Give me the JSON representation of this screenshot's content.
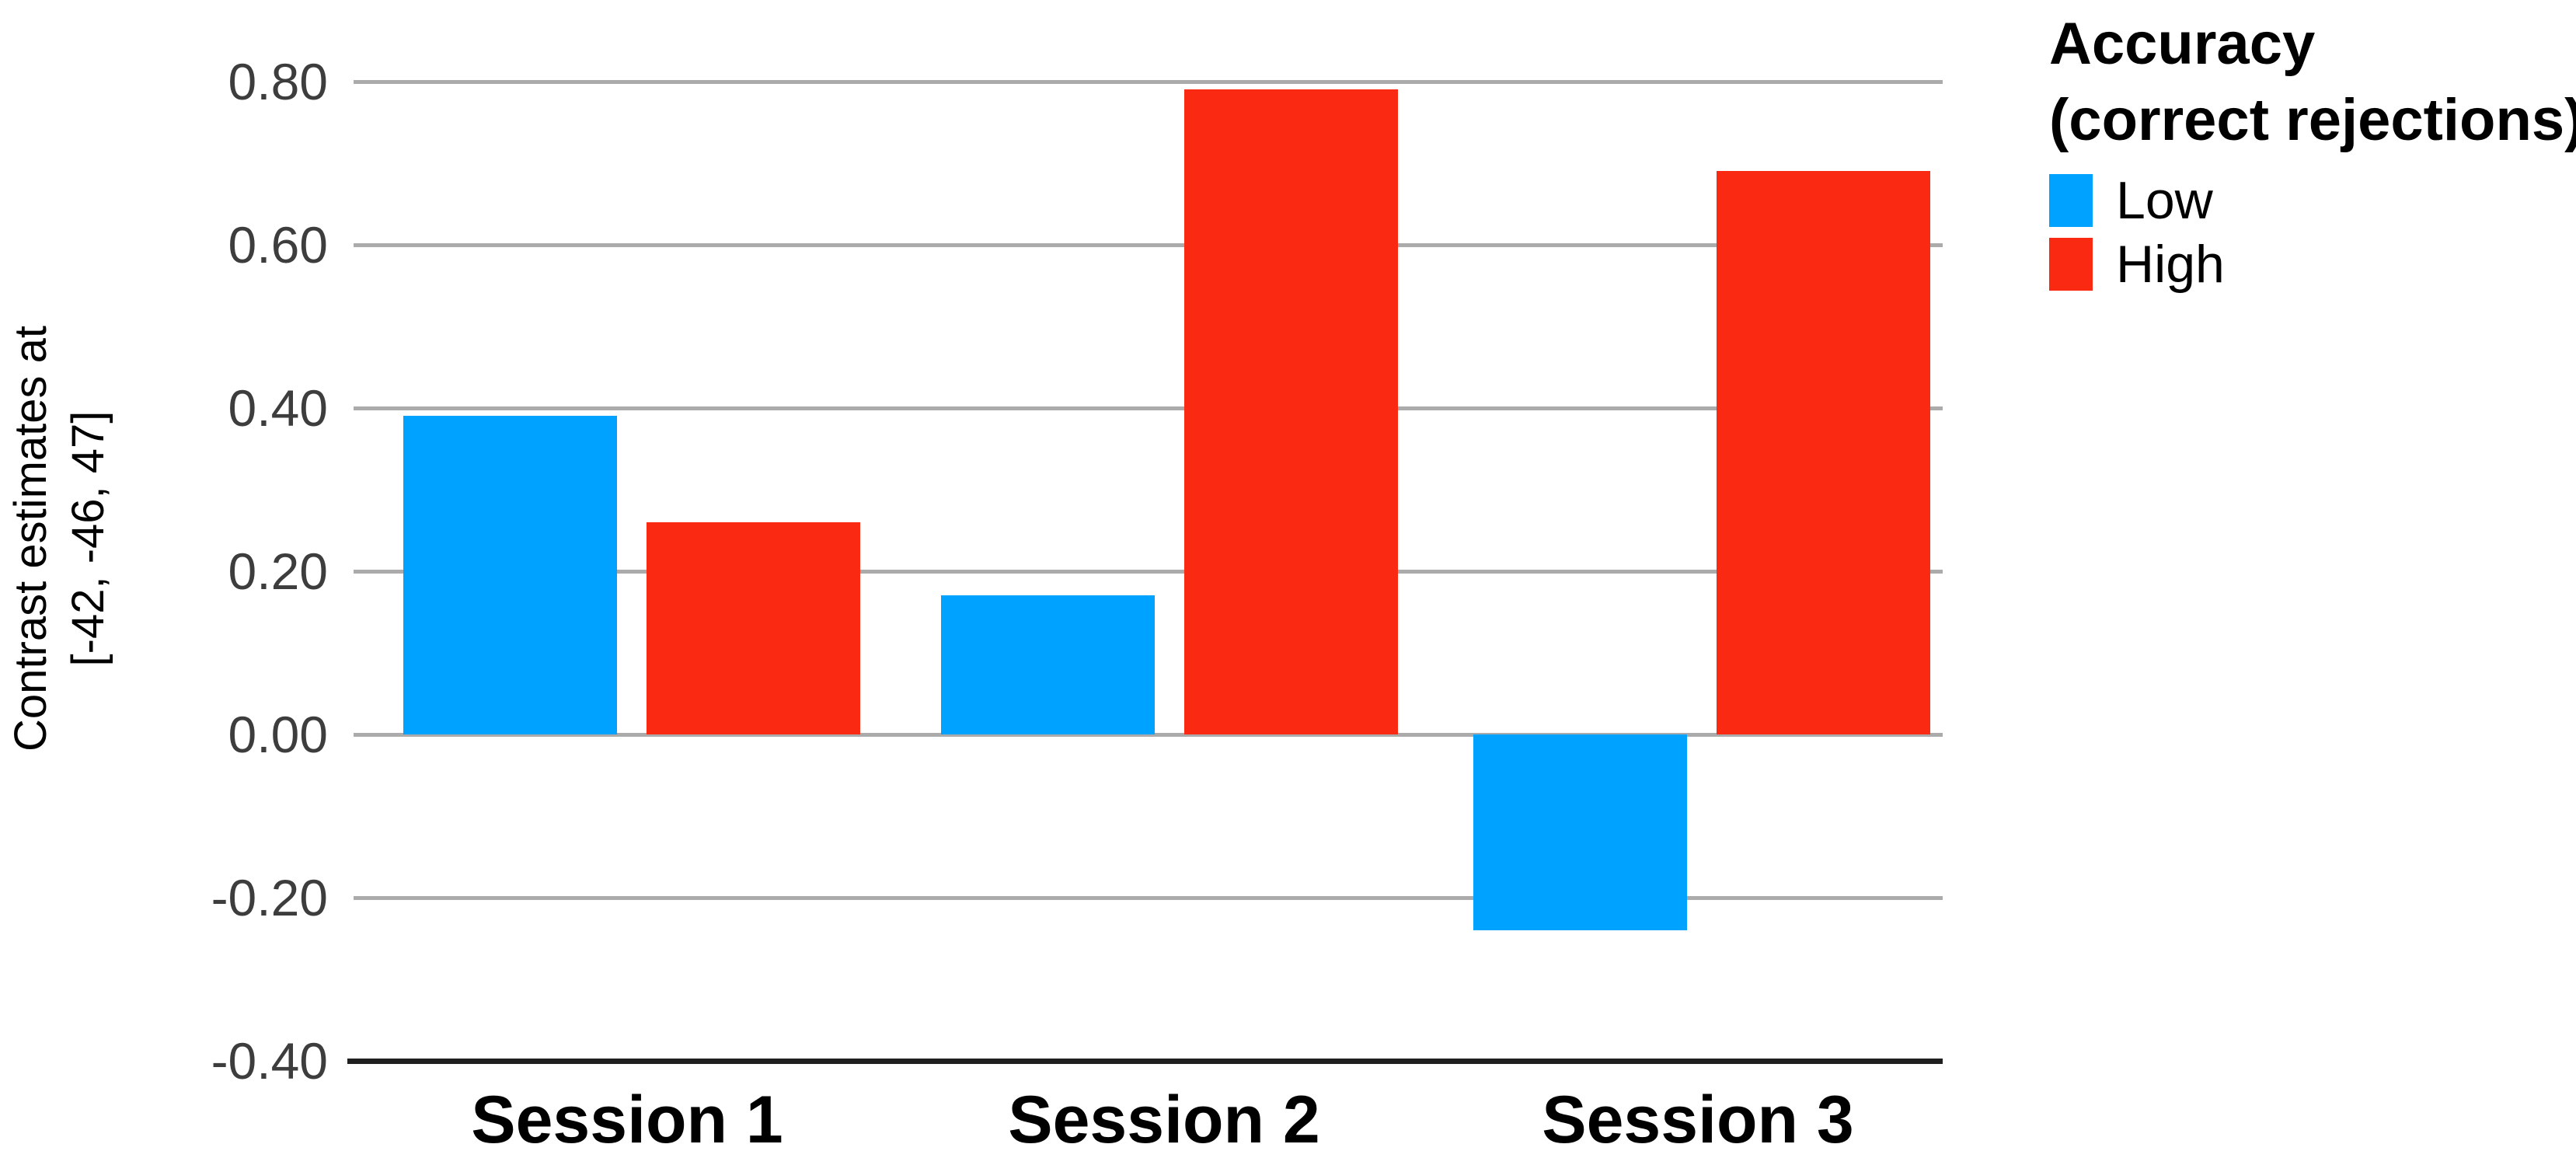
{
  "chart_data": {
    "type": "bar",
    "title": "",
    "categories": [
      "Session 1",
      "Session 2",
      "Session 3"
    ],
    "series": [
      {
        "name": "Low",
        "color": "#00a2ff",
        "values": [
          0.39,
          0.17,
          -0.24
        ]
      },
      {
        "name": "High",
        "color": "#fa2a12",
        "values": [
          0.26,
          0.79,
          0.69
        ]
      }
    ],
    "y_axis": {
      "label_lines": [
        "Contrast estimates at",
        "[-42, -46, 47]"
      ],
      "ticks": [
        0.8,
        0.6,
        0.4,
        0.2,
        0.0,
        -0.2,
        -0.4
      ],
      "tick_labels": [
        "0.80",
        "0.60",
        "0.40",
        "0.20",
        "0.00",
        "-0.20",
        "-0.40"
      ],
      "min": -0.4,
      "max": 0.85
    },
    "xlabel": "",
    "ylabel": "Contrast estimates at [-42, -46, 47]",
    "grid": true,
    "legend": {
      "position": "top-right",
      "title_lines": [
        "Accuracy",
        "(correct rejections)"
      ],
      "items": [
        {
          "label": "Low",
          "color": "#00a2ff"
        },
        {
          "label": "High",
          "color": "#fa2a12"
        }
      ]
    }
  },
  "colors": {
    "bar_low": "#00a2ff",
    "bar_high": "#fa2a12",
    "gridline": "#ababab",
    "axis_line": "#1f1f1f",
    "tick_text": "#3d3d3d",
    "label_text": "#000000",
    "background": "#ffffff"
  }
}
